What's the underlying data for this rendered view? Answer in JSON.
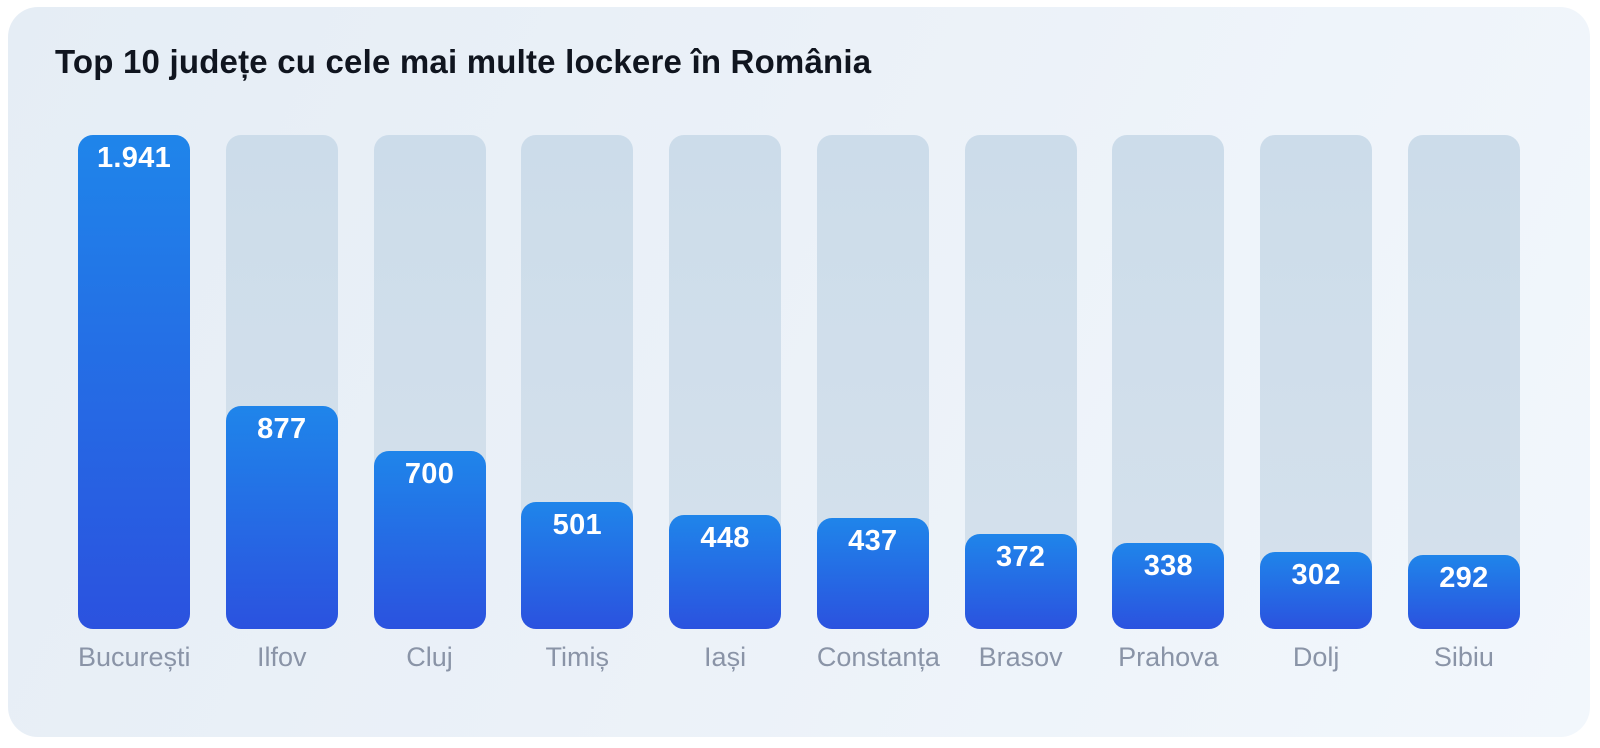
{
  "card": {
    "background_start": "#e5edf5",
    "background_end": "#f2f7fc"
  },
  "chart_data": {
    "type": "bar",
    "title": "Top 10 județe cu cele mai multe lockere în România",
    "orientation": "vertical",
    "categories": [
      "București",
      "Ilfov",
      "Cluj",
      "Timiș",
      "Iași",
      "Constanța",
      "Brasov",
      "Prahova",
      "Dolj",
      "Sibiu"
    ],
    "values": [
      1941,
      877,
      700,
      501,
      448,
      437,
      372,
      338,
      302,
      292
    ],
    "value_labels": [
      "1.941",
      "877",
      "700",
      "501",
      "448",
      "437",
      "372",
      "338",
      "302",
      "292"
    ],
    "y_max": 1941,
    "grid": false,
    "legend": false,
    "xlabel": "",
    "ylabel": "",
    "colors": {
      "bar_gradient_top": "#1f85ea",
      "bar_gradient_bottom": "#2b52df",
      "track": "#cfdeea",
      "value_text": "#ffffff",
      "category_text": "#8a94a7",
      "title_text": "#10151f"
    }
  }
}
